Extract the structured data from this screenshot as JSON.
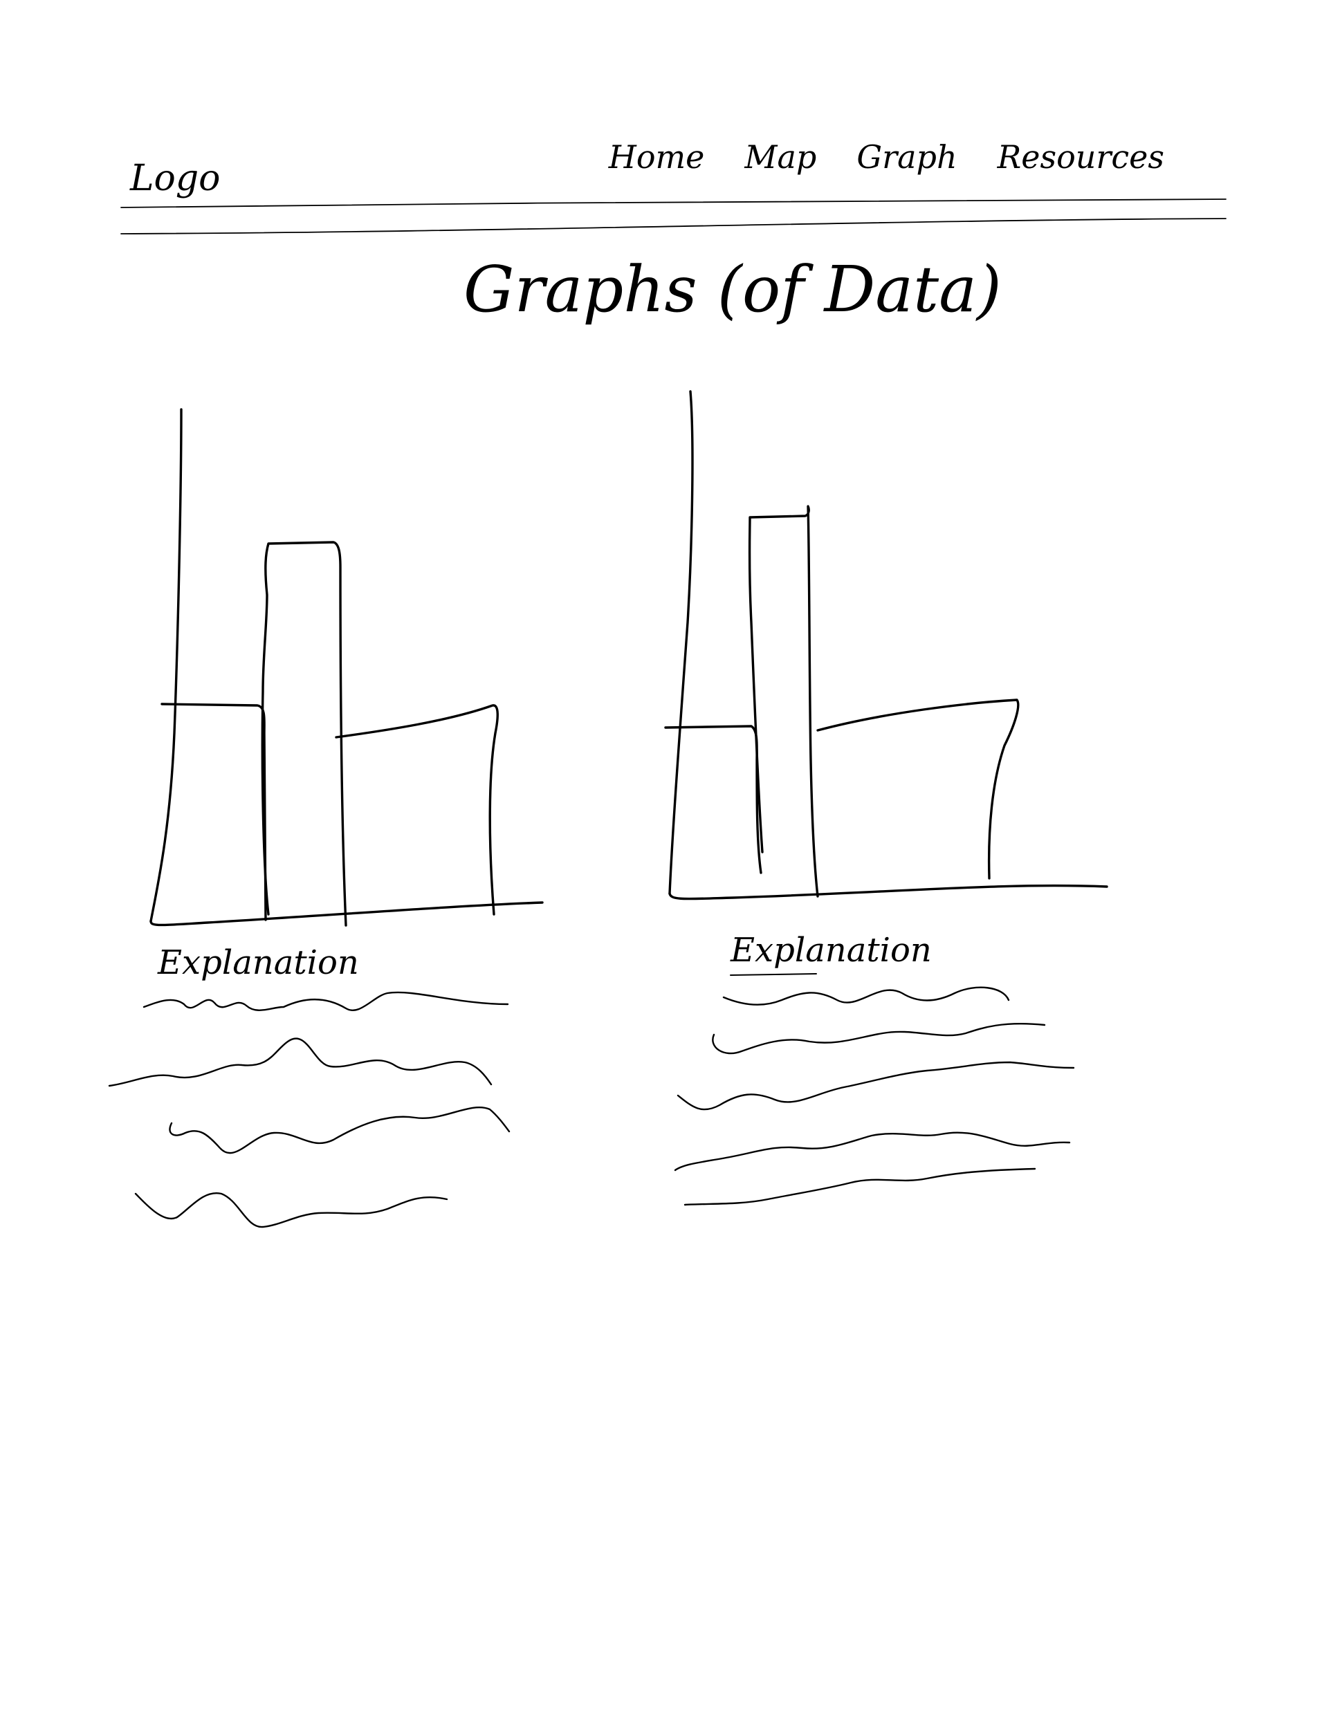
{
  "header": {
    "logo": "Logo",
    "nav": [
      {
        "label": "Home"
      },
      {
        "label": "Map"
      },
      {
        "label": "Graph"
      },
      {
        "label": "Resources"
      }
    ]
  },
  "main": {
    "title": "Graphs (of Data)",
    "graphs": [
      {
        "caption": "Explanation"
      },
      {
        "caption": "Explanation"
      }
    ]
  },
  "chart_data": [
    {
      "type": "bar",
      "title": "",
      "xlabel": "",
      "ylabel": "",
      "categories": [
        "",
        "",
        ""
      ],
      "values": [
        0.43,
        0.74,
        0.38
      ],
      "note": "sketched placeholder bars, relative heights only"
    },
    {
      "type": "bar",
      "title": "",
      "xlabel": "",
      "ylabel": "",
      "categories": [
        "",
        "",
        ""
      ],
      "values": [
        0.37,
        0.76,
        0.45
      ],
      "note": "sketched placeholder bars, relative heights only"
    }
  ]
}
